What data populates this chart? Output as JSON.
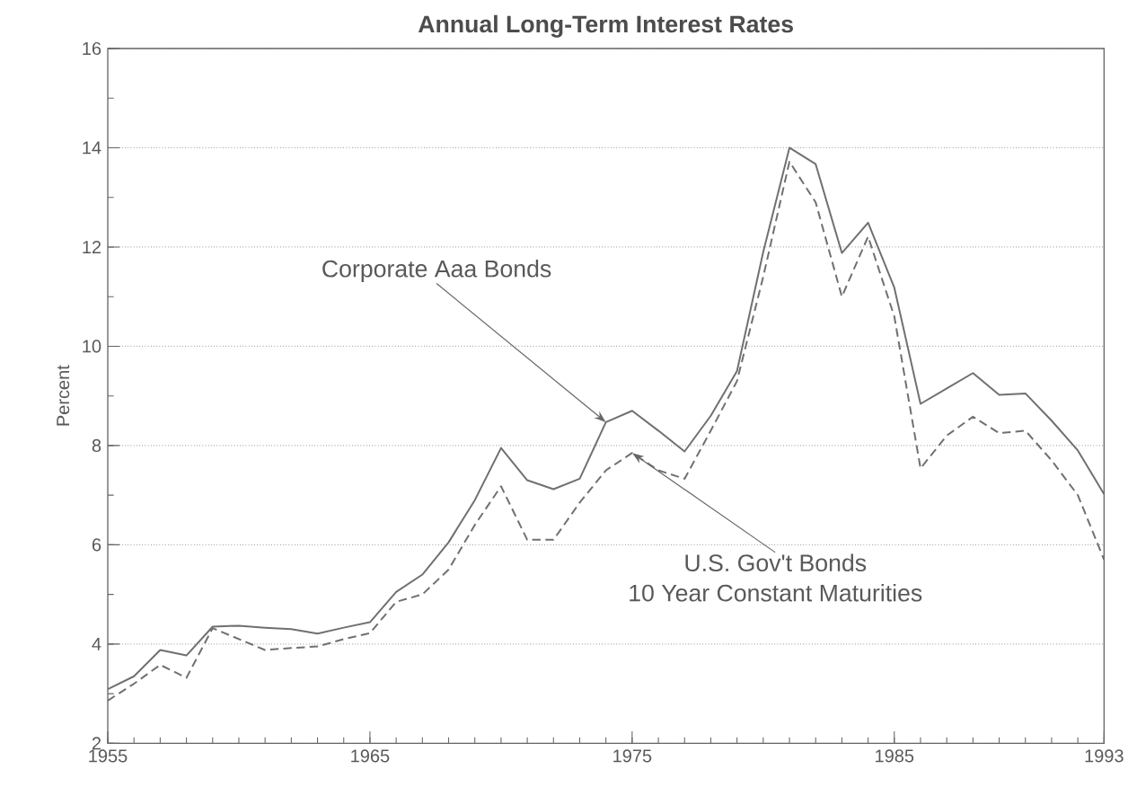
{
  "chart_data": {
    "type": "line",
    "title": "Annual Long-Term Interest Rates",
    "ylabel": "Percent",
    "x": [
      1955,
      1956,
      1957,
      1958,
      1959,
      1960,
      1961,
      1962,
      1963,
      1964,
      1965,
      1966,
      1967,
      1968,
      1969,
      1970,
      1971,
      1972,
      1973,
      1974,
      1975,
      1976,
      1977,
      1978,
      1979,
      1980,
      1981,
      1982,
      1983,
      1984,
      1985,
      1986,
      1987,
      1988,
      1989,
      1990,
      1991,
      1992,
      1993
    ],
    "series": [
      {
        "color": "#707070",
        "line_style": "solid",
        "values": [
          3.09,
          3.35,
          3.88,
          3.77,
          4.35,
          4.37,
          4.33,
          4.3,
          4.21,
          4.33,
          4.44,
          5.05,
          5.4,
          6.05,
          6.9,
          7.95,
          7.3,
          7.12,
          7.33,
          8.47,
          8.7,
          8.3,
          7.88,
          8.6,
          9.5,
          11.9,
          14.0,
          13.67,
          11.88,
          12.49,
          11.18,
          8.84,
          9.15,
          9.46,
          9.02,
          9.05,
          8.5,
          7.9,
          7.02
        ]
      },
      {
        "color": "#707070",
        "line_style": "dashed",
        "values": [
          2.86,
          3.2,
          3.58,
          3.32,
          4.32,
          4.1,
          3.88,
          3.92,
          3.95,
          4.1,
          4.22,
          4.85,
          5.0,
          5.5,
          6.4,
          7.18,
          6.1,
          6.1,
          6.85,
          7.5,
          7.85,
          7.5,
          7.33,
          8.3,
          9.3,
          11.4,
          13.72,
          12.9,
          11.0,
          12.21,
          10.6,
          7.54,
          8.2,
          8.58,
          8.25,
          8.3,
          7.7,
          7.0,
          5.7
        ]
      }
    ],
    "xlim": [
      1955,
      1993
    ],
    "xticks": [
      1955,
      1965,
      1975,
      1985,
      1993
    ],
    "ylim": [
      2,
      16
    ],
    "yticks": [
      2,
      4,
      6,
      8,
      10,
      12,
      14,
      16
    ],
    "grid": "y",
    "annotations": [
      {
        "text": "Corporate Aaa Bonds",
        "x": 1974,
        "y": 8.47
      },
      {
        "text": "U.S. Gov't Bonds",
        "x": 1975,
        "y": 7.85
      },
      "10 Year Constant Maturities"
    ]
  }
}
